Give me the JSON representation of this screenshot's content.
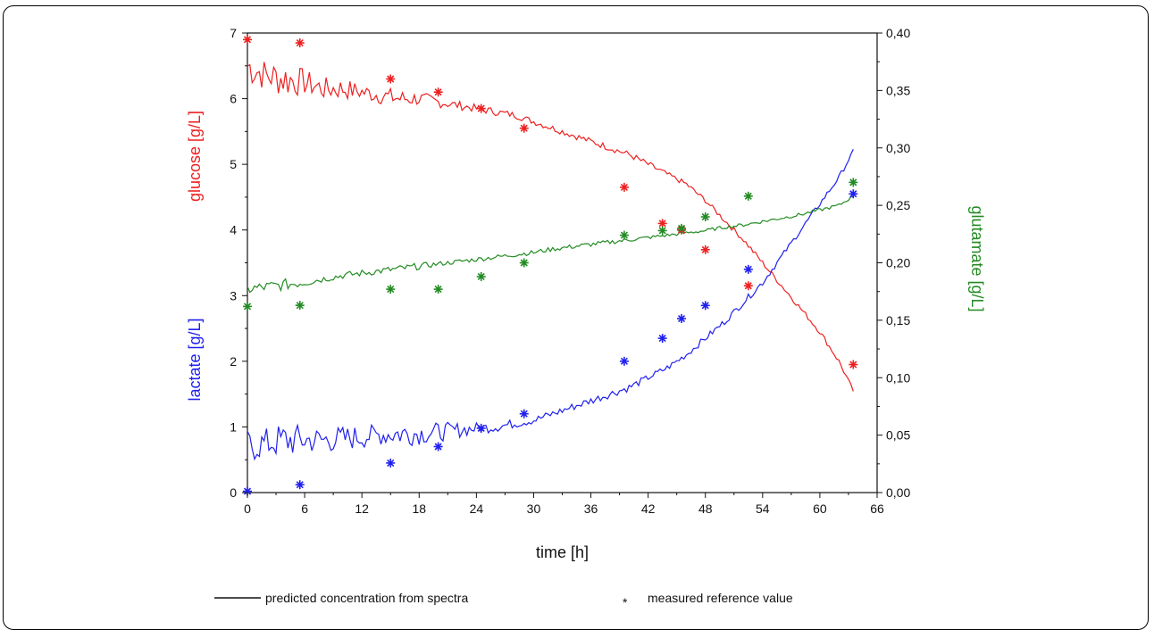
{
  "chart_data": {
    "type": "line",
    "xlabel": "time [h]",
    "xlim": [
      0,
      66
    ],
    "xticks": [
      "0",
      "6",
      "12",
      "18",
      "24",
      "30",
      "36",
      "42",
      "48",
      "54",
      "60",
      "66"
    ],
    "xtick_values": [
      0,
      6,
      12,
      18,
      24,
      30,
      36,
      42,
      48,
      54,
      60,
      66
    ],
    "left_axis": {
      "ylim": [
        0,
        7
      ],
      "ticks": [
        "0",
        "1",
        "2",
        "3",
        "4",
        "5",
        "6",
        "7"
      ],
      "tick_values": [
        0,
        1,
        2,
        3,
        4,
        5,
        6,
        7
      ],
      "labels": [
        {
          "text": "glucose [g/L]",
          "color": "#ee2020"
        },
        {
          "text": "lactate [g/L]",
          "color": "#2020ee"
        }
      ]
    },
    "right_axis": {
      "ylim": [
        0,
        0.4
      ],
      "ticks": [
        "0,00",
        "0,05",
        "0,10",
        "0,15",
        "0,20",
        "0,25",
        "0,30",
        "0,35",
        "0,40"
      ],
      "tick_values": [
        0,
        0.05,
        0.1,
        0.15,
        0.2,
        0.25,
        0.3,
        0.35,
        0.4
      ],
      "label": {
        "text": "glutamate [g/L]",
        "color": "#238b23"
      }
    },
    "series": [
      {
        "key": "glucose",
        "axis": "left",
        "color": "#ee2020",
        "predicted": {
          "x": [
            0,
            2,
            4,
            6,
            8,
            10,
            12,
            14,
            16,
            18,
            20,
            22,
            24,
            26,
            28,
            30,
            32,
            34,
            36,
            38,
            40,
            42,
            44,
            46,
            48,
            50,
            52,
            54,
            56,
            58,
            60,
            62,
            63.5
          ],
          "y": [
            6.5,
            6.35,
            6.3,
            6.25,
            6.15,
            6.15,
            6.1,
            6.05,
            6.0,
            6.0,
            5.95,
            5.9,
            5.85,
            5.8,
            5.75,
            5.65,
            5.55,
            5.45,
            5.35,
            5.25,
            5.15,
            5.0,
            4.85,
            4.7,
            4.45,
            4.15,
            3.85,
            3.5,
            3.15,
            2.8,
            2.45,
            2.0,
            1.55
          ],
          "noise": [
            0.3,
            0.24,
            0.3,
            0.2,
            0.18,
            0.17,
            0.13,
            0.14,
            0.14,
            0.11,
            0.09,
            0.07,
            0.06,
            0.06,
            0.05,
            0.05,
            0.05,
            0.05,
            0.05,
            0.05,
            0.05,
            0.05,
            0.04,
            0.04,
            0.04,
            0.04,
            0.04,
            0.04,
            0.04,
            0.04,
            0.04,
            0.04,
            0.03
          ]
        },
        "measured": {
          "x": [
            0,
            5.5,
            15,
            20,
            24.5,
            29,
            39.5,
            43.5,
            45.5,
            48,
            52.5,
            63.5
          ],
          "y": [
            6.9,
            6.85,
            6.3,
            6.1,
            5.85,
            5.55,
            4.65,
            4.1,
            4.0,
            3.7,
            3.15,
            1.95
          ]
        }
      },
      {
        "key": "lactate",
        "axis": "left",
        "color": "#2020ee",
        "predicted": {
          "x": [
            0,
            2,
            4,
            6,
            8,
            10,
            12,
            14,
            16,
            18,
            20,
            22,
            24,
            26,
            28,
            30,
            32,
            34,
            36,
            38,
            40,
            42,
            44,
            46,
            48,
            50,
            52,
            54,
            56,
            58,
            60,
            62,
            63.5
          ],
          "y": [
            0.7,
            0.75,
            0.8,
            0.8,
            0.8,
            0.82,
            0.85,
            0.88,
            0.9,
            0.9,
            0.92,
            0.95,
            0.98,
            1.0,
            1.05,
            1.1,
            1.2,
            1.3,
            1.4,
            1.5,
            1.6,
            1.75,
            1.9,
            2.1,
            2.35,
            2.6,
            2.9,
            3.2,
            3.6,
            4.0,
            4.4,
            4.8,
            5.2
          ],
          "noise": [
            0.26,
            0.24,
            0.28,
            0.22,
            0.2,
            0.2,
            0.18,
            0.16,
            0.2,
            0.17,
            0.15,
            0.12,
            0.09,
            0.08,
            0.07,
            0.06,
            0.06,
            0.06,
            0.06,
            0.06,
            0.06,
            0.05,
            0.05,
            0.05,
            0.05,
            0.05,
            0.05,
            0.05,
            0.04,
            0.04,
            0.04,
            0.04,
            0.03
          ]
        },
        "measured": {
          "x": [
            0,
            5.5,
            15,
            20,
            24.5,
            29,
            39.5,
            43.5,
            45.5,
            48,
            52.5,
            63.5
          ],
          "y": [
            0.02,
            0.12,
            0.45,
            0.7,
            0.98,
            1.2,
            2.0,
            2.35,
            2.65,
            2.85,
            3.4,
            4.55
          ]
        }
      },
      {
        "key": "glutamate",
        "axis": "right",
        "color": "#238b23",
        "predicted": {
          "x": [
            0,
            2,
            4,
            6,
            8,
            10,
            12,
            14,
            16,
            18,
            20,
            22,
            24,
            26,
            28,
            30,
            32,
            34,
            36,
            38,
            40,
            42,
            44,
            46,
            48,
            50,
            52,
            54,
            56,
            58,
            60,
            62,
            63.5
          ],
          "y": [
            0.177,
            0.179,
            0.181,
            0.183,
            0.186,
            0.189,
            0.191,
            0.193,
            0.195,
            0.197,
            0.199,
            0.201,
            0.203,
            0.205,
            0.207,
            0.209,
            0.212,
            0.214,
            0.216,
            0.218,
            0.22,
            0.222,
            0.224,
            0.226,
            0.228,
            0.231,
            0.233,
            0.236,
            0.239,
            0.242,
            0.246,
            0.25,
            0.258
          ],
          "noise": [
            0.005,
            0.005,
            0.005,
            0.004,
            0.003,
            0.003,
            0.003,
            0.003,
            0.003,
            0.003,
            0.002,
            0.002,
            0.002,
            0.002,
            0.002,
            0.002,
            0.002,
            0.002,
            0.002,
            0.002,
            0.002,
            0.0015,
            0.0015,
            0.0015,
            0.0015,
            0.0015,
            0.0015,
            0.0015,
            0.0015,
            0.0015,
            0.0015,
            0.0015,
            0.001
          ]
        },
        "measured": {
          "x": [
            0,
            5.5,
            15,
            20,
            24.5,
            29,
            39.5,
            43.5,
            45.5,
            48,
            52.5,
            63.5
          ],
          "y": [
            0.162,
            0.163,
            0.177,
            0.177,
            0.188,
            0.2,
            0.224,
            0.228,
            0.23,
            0.24,
            0.258,
            0.27
          ]
        }
      }
    ],
    "legend": {
      "position": "bottom",
      "line_text": "predicted concentration from spectra",
      "marker_symbol": "*",
      "marker_text": "measured reference value"
    }
  }
}
